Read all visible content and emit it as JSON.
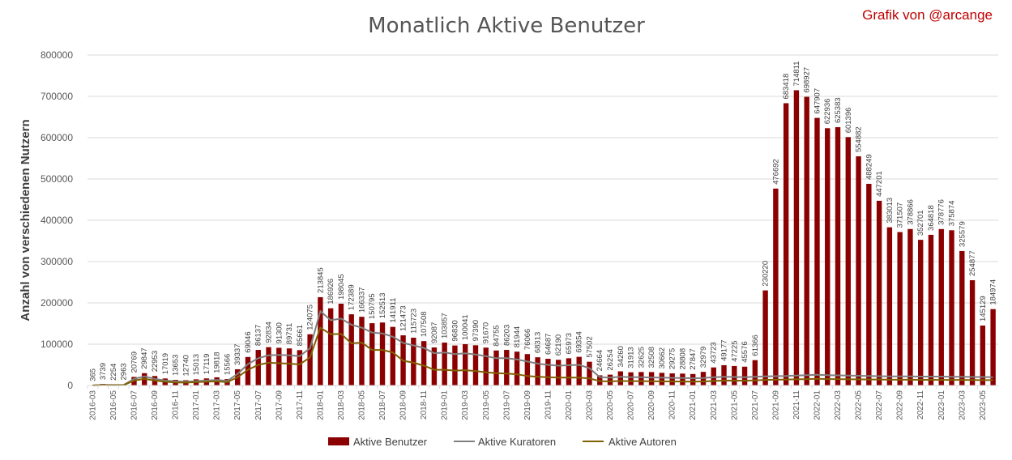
{
  "chart_data": {
    "type": "bar",
    "title": "Monatlich Aktive Benutzer",
    "credit": "Grafik von @arcange",
    "xlabel": "",
    "ylabel": "Anzahl von verschiedenen Nutzern",
    "ylim": [
      0,
      800000
    ],
    "yticks": [
      "0",
      "100000",
      "200000",
      "300000",
      "400000",
      "500000",
      "600000",
      "700000",
      "800000"
    ],
    "grid": true,
    "legend_position": "bottom",
    "colors": {
      "bars": "#8b0000",
      "kuratoren": "#7f7f7f",
      "autoren": "#7f6000"
    },
    "categories": [
      "2016-03",
      "2016-04",
      "2016-05",
      "2016-06",
      "2016-07",
      "2016-08",
      "2016-09",
      "2016-10",
      "2016-11",
      "2016-12",
      "2017-01",
      "2017-02",
      "2017-03",
      "2017-04",
      "2017-05",
      "2017-06",
      "2017-07",
      "2017-08",
      "2017-09",
      "2017-10",
      "2017-11",
      "2017-12",
      "2018-01",
      "2018-02",
      "2018-03",
      "2018-04",
      "2018-05",
      "2018-06",
      "2018-07",
      "2018-08",
      "2018-09",
      "2018-10",
      "2018-11",
      "2018-12",
      "2019-01",
      "2019-02",
      "2019-03",
      "2019-04",
      "2019-05",
      "2019-06",
      "2019-07",
      "2019-08",
      "2019-09",
      "2019-10",
      "2019-11",
      "2019-12",
      "2020-01",
      "2020-02",
      "2020-03",
      "2020-04",
      "2020-05",
      "2020-06",
      "2020-07",
      "2020-08",
      "2020-09",
      "2020-10",
      "2020-11",
      "2020-12",
      "2021-01",
      "2021-02",
      "2021-03",
      "2021-04",
      "2021-05",
      "2021-06",
      "2021-07",
      "2021-08",
      "2021-09",
      "2021-10",
      "2021-11",
      "2021-12",
      "2022-01",
      "2022-02",
      "2022-03",
      "2022-04",
      "2022-05",
      "2022-06",
      "2022-07",
      "2022-08",
      "2022-09",
      "2022-10",
      "2022-11",
      "2022-12",
      "2023-01",
      "2023-02",
      "2023-03",
      "2023-04",
      "2023-05",
      "2023-06"
    ],
    "series": [
      {
        "name": "Aktive Benutzer",
        "kind": "bar",
        "values": [
          365,
          3739,
          2254,
          2963,
          20769,
          29847,
          22953,
          17019,
          13653,
          12740,
          15013,
          17119,
          19818,
          15566,
          39337,
          69046,
          86137,
          92834,
          91300,
          89731,
          85661,
          124075,
          213845,
          186926,
          198045,
          172389,
          166337,
          150795,
          152513,
          141911,
          121473,
          115723,
          107508,
          92087,
          103857,
          96830,
          100041,
          97390,
          91670,
          84755,
          86203,
          81944,
          76066,
          68313,
          64687,
          62190,
          65973,
          69354,
          57502,
          24664,
          26254,
          34260,
          31913,
          32625,
          32508,
          30662,
          29275,
          28808,
          27847,
          32979,
          43723,
          49177,
          47225,
          45576,
          61366,
          230220,
          476692,
          683418,
          714811,
          698927,
          647907,
          622936,
          625383,
          601396,
          554882,
          488249,
          447201,
          383013,
          371507,
          378866,
          352701,
          364818,
          378776,
          375874,
          325579,
          254877,
          145129,
          184974
        ]
      },
      {
        "name": "Aktive Kuratoren",
        "kind": "line",
        "values": [
          300,
          1500,
          1200,
          1500,
          16000,
          22000,
          16000,
          12000,
          10000,
          9000,
          10500,
          12000,
          13500,
          11000,
          28000,
          52000,
          66000,
          73000,
          74000,
          73000,
          71000,
          90000,
          180000,
          158000,
          162000,
          147000,
          140000,
          128000,
          126000,
          118000,
          103000,
          97000,
          91000,
          78000,
          80000,
          76000,
          78000,
          75000,
          71000,
          66000,
          66000,
          63000,
          58000,
          53000,
          50000,
          48000,
          49000,
          50000,
          42000,
          20000,
          19000,
          21000,
          20000,
          20000,
          19500,
          19000,
          18500,
          18000,
          17500,
          18000,
          20000,
          21000,
          20500,
          20000,
          21000,
          22000,
          22500,
          23000,
          24000,
          25000,
          26000,
          25000,
          24500,
          24000,
          23500,
          23000,
          22500,
          22000,
          22000,
          22000,
          21500,
          21500,
          21500,
          21000,
          21000,
          20500,
          20500,
          20000
        ]
      },
      {
        "name": "Aktive Autoren",
        "kind": "line",
        "values": [
          200,
          1000,
          800,
          1000,
          12000,
          16000,
          12000,
          9000,
          7500,
          7000,
          8000,
          9000,
          10000,
          8000,
          20000,
          38000,
          50000,
          55000,
          54000,
          53000,
          51000,
          68000,
          140000,
          124000,
          125000,
          102000,
          104000,
          86000,
          86000,
          80000,
          60000,
          55000,
          48000,
          38000,
          38000,
          36000,
          37000,
          35000,
          32000,
          30000,
          29000,
          27000,
          23000,
          21000,
          20000,
          19000,
          19500,
          19000,
          17000,
          10500,
          10000,
          11000,
          10500,
          10500,
          10200,
          10000,
          9800,
          9600,
          9500,
          9800,
          11000,
          12000,
          11800,
          11500,
          12500,
          13500,
          14000,
          14500,
          15000,
          15500,
          16000,
          15500,
          15500,
          15000,
          15000,
          14500,
          14500,
          14000,
          14000,
          14000,
          13800,
          13800,
          13600,
          13500,
          13500,
          13200,
          13000,
          13000
        ]
      }
    ]
  }
}
